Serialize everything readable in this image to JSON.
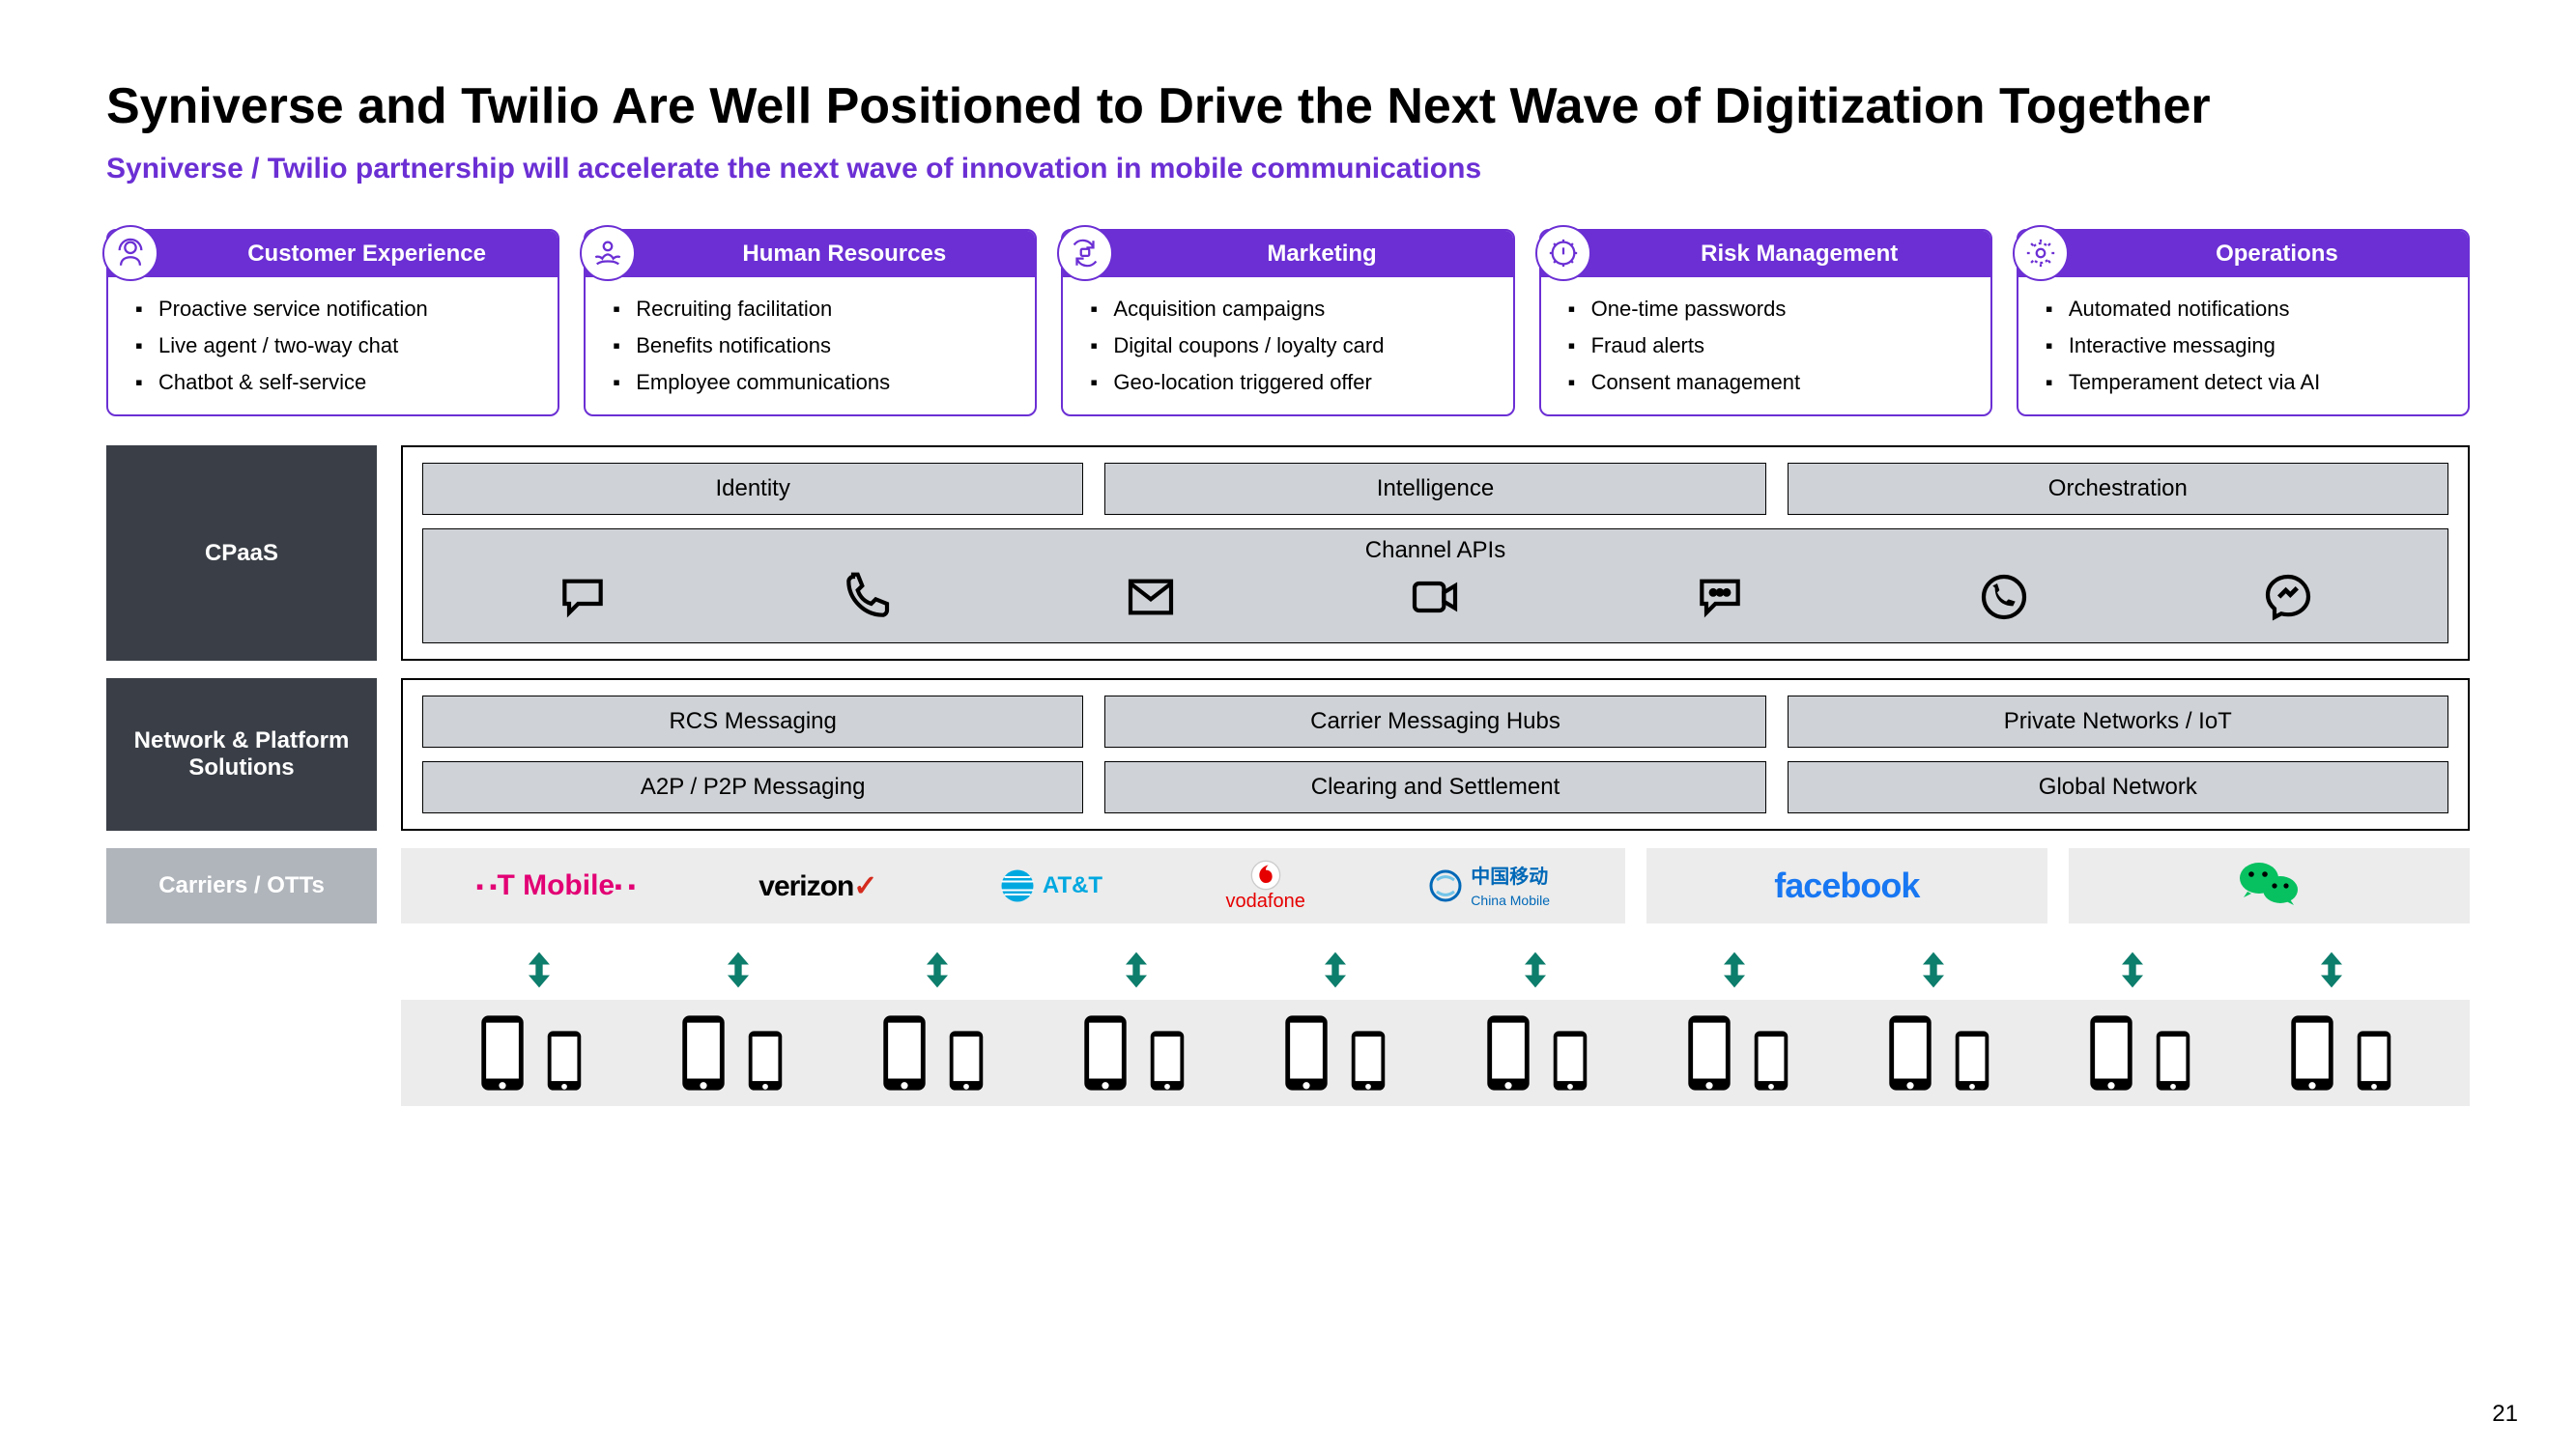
{
  "title": "Syniverse and Twilio Are Well Positioned to Drive the Next Wave of Digitization Together",
  "subtitle": "Syniverse / Twilio partnership will accelerate the next wave of innovation in mobile communications",
  "page_number": "21",
  "colors": {
    "accent_purple": "#6b2fd4",
    "dark_panel": "#3a3f47",
    "light_panel": "#b0b5bb",
    "box_fill": "#cfd2d6",
    "carrier_bg": "#ececec",
    "arrow_teal": "#0d7d6c",
    "tmobile": "#e20074",
    "verizon_check": "#d52b1e",
    "att": "#00a8e0",
    "vodafone": "#e60000",
    "china_mobile": "#0068b7",
    "facebook": "#1877f2",
    "wechat": "#07c160"
  },
  "usecases": [
    {
      "title": "Customer Experience",
      "icon": "headset-user",
      "items": [
        "Proactive service notification",
        "Live agent / two-way chat",
        "Chatbot & self-service"
      ]
    },
    {
      "title": "Human Resources",
      "icon": "hands-person",
      "items": [
        "Recruiting facilitation",
        "Benefits notifications",
        "Employee communications"
      ]
    },
    {
      "title": "Marketing",
      "icon": "refresh-cart",
      "items": [
        "Acquisition campaigns",
        "Digital coupons / loyalty card",
        "Geo-location triggered offer"
      ]
    },
    {
      "title": "Risk Management",
      "icon": "gear-alert",
      "items": [
        "One-time passwords",
        "Fraud alerts",
        "Consent management"
      ]
    },
    {
      "title": "Operations",
      "icon": "gear-sync",
      "items": [
        "Automated notifications",
        "Interactive messaging",
        "Temperament detect via AI"
      ]
    }
  ],
  "stack": {
    "cpaas": {
      "label": "CPaaS",
      "top_row": [
        "Identity",
        "Intelligence",
        "Orchestration"
      ],
      "channel_label": "Channel APIs",
      "channels": [
        "speech-bubble",
        "phone-handset",
        "envelope",
        "video-camera",
        "chat-dots",
        "whatsapp",
        "messenger"
      ]
    },
    "network": {
      "label": "Network & Platform Solutions",
      "row1": [
        "RCS Messaging",
        "Carrier Messaging Hubs",
        "Private Networks / IoT"
      ],
      "row2": [
        "A2P / P2P Messaging",
        "Clearing and Settlement",
        "Global Network"
      ]
    },
    "carriers": {
      "label": "Carriers / OTTs",
      "groups": [
        {
          "logos": [
            "T Mobile",
            "verizon",
            "AT&T",
            "vodafone",
            "China Mobile"
          ]
        },
        {
          "logos": [
            "facebook"
          ]
        },
        {
          "logos": [
            "WeChat"
          ]
        }
      ]
    }
  },
  "arrow_count": 10,
  "phone_pair_count": 10
}
